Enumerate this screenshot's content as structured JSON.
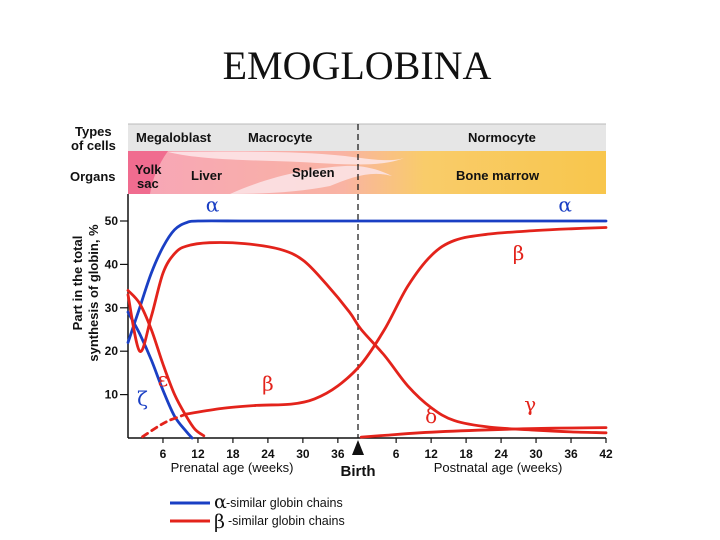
{
  "slide": {
    "title": "EMOGLOBINA"
  },
  "header": {
    "cells_label_1": "Types",
    "cells_label_2": "of cells",
    "organs_label": "Organs",
    "cell_types": [
      "Megaloblast",
      "Macrocyte",
      "Normocyte"
    ],
    "organs": [
      "Yolk",
      "sac",
      "Liver",
      "Spleen",
      "Bone marrow"
    ]
  },
  "chart_data": {
    "type": "line",
    "title": "",
    "ylabel_1": "Part in the total",
    "ylabel_2": "synthesis of globin, %",
    "xlabel_prenatal": "Prenatal age (weeks)",
    "xlabel_postnatal": "Postnatal age (weeks)",
    "birth_label": "Birth",
    "y_ticks": [
      "10",
      "20",
      "30",
      "40",
      "50"
    ],
    "ylim": [
      0,
      50
    ],
    "x_ticks_prenatal": [
      "6",
      "12",
      "18",
      "24",
      "30",
      "36"
    ],
    "x_ticks_postnatal": [
      "6",
      "12",
      "18",
      "24",
      "30",
      "36",
      "42"
    ],
    "x_note": "time axis in weeks; prenatal 0–40 weeks, birth at 40, postnatal 0–42 weeks",
    "legend": [
      {
        "symbol": "α",
        "text": "-similar globin chains",
        "color": "#1a3fc4"
      },
      {
        "symbol": "β",
        "text": "-similar globin chains",
        "color": "#e3231b"
      }
    ],
    "series": [
      {
        "name": "α",
        "group": "alpha",
        "color": "#1a3fc4",
        "dashed": false,
        "points": [
          [
            0,
            22
          ],
          [
            2,
            30
          ],
          [
            4,
            38
          ],
          [
            6,
            44
          ],
          [
            8,
            48
          ],
          [
            10,
            49.6
          ],
          [
            12,
            50
          ],
          [
            20,
            50
          ],
          [
            30,
            50
          ],
          [
            38,
            50
          ],
          [
            40,
            50
          ],
          [
            52,
            50
          ],
          [
            64,
            50
          ],
          [
            76,
            50
          ],
          [
            82,
            50
          ]
        ],
        "label": "α",
        "label_at": [
          [
            14.5,
            52.2
          ],
          [
            75,
            52.2
          ]
        ]
      },
      {
        "name": "ζ",
        "group": "alpha",
        "color": "#1a3fc4",
        "dashed": false,
        "points": [
          [
            0,
            29
          ],
          [
            2,
            24
          ],
          [
            4,
            18
          ],
          [
            6,
            11
          ],
          [
            8,
            5
          ],
          [
            10,
            1.5
          ],
          [
            11,
            0
          ]
        ],
        "label": "ζ",
        "label_at": [
          [
            2.5,
            7.5
          ]
        ]
      },
      {
        "name": "ε",
        "group": "beta",
        "color": "#e3231b",
        "dashed": false,
        "points": [
          [
            0,
            34
          ],
          [
            2,
            31
          ],
          [
            4,
            25
          ],
          [
            6,
            17
          ],
          [
            8,
            10
          ],
          [
            10,
            5
          ],
          [
            11.5,
            2
          ],
          [
            13,
            0.5
          ]
        ],
        "label": "ε",
        "label_at": [
          [
            6,
            12
          ]
        ]
      },
      {
        "name": "γ",
        "group": "beta",
        "color": "#e3231b",
        "dashed": false,
        "points": [
          [
            0,
            33
          ],
          [
            2,
            20
          ],
          [
            4,
            28
          ],
          [
            6,
            38
          ],
          [
            8,
            42.5
          ],
          [
            10,
            44.2
          ],
          [
            14,
            45
          ],
          [
            20,
            44.8
          ],
          [
            26,
            43.5
          ],
          [
            30,
            41
          ],
          [
            34,
            35.5
          ],
          [
            38,
            29
          ],
          [
            40,
            25
          ],
          [
            44,
            19
          ],
          [
            48,
            12
          ],
          [
            52,
            7
          ],
          [
            56,
            4
          ],
          [
            62,
            2.5
          ],
          [
            70,
            1.8
          ],
          [
            76,
            1.4
          ],
          [
            82,
            1.2
          ]
        ],
        "label": "γ",
        "label_at": [
          [
            69,
            6.2
          ]
        ]
      },
      {
        "name": "β",
        "group": "beta",
        "color": "#e3231b",
        "dashed": false,
        "points": [
          [
            10,
            5.5
          ],
          [
            16,
            6.8
          ],
          [
            22,
            7.5
          ],
          [
            28,
            7.8
          ],
          [
            32,
            9
          ],
          [
            36,
            12
          ],
          [
            40,
            17
          ],
          [
            44,
            25
          ],
          [
            48,
            35
          ],
          [
            52,
            42
          ],
          [
            56,
            45.5
          ],
          [
            62,
            47
          ],
          [
            70,
            47.8
          ],
          [
            76,
            48.2
          ],
          [
            82,
            48.5
          ]
        ],
        "label": "β",
        "label_at": [
          [
            24,
            11
          ],
          [
            67,
            41
          ]
        ]
      },
      {
        "name": "ε/γ (early, dashed)",
        "group": "beta",
        "color": "#e3231b",
        "dashed": true,
        "points": [
          [
            2.5,
            0.3
          ],
          [
            5,
            2.5
          ],
          [
            7,
            4
          ],
          [
            10,
            5.5
          ]
        ],
        "label": "",
        "label_at": []
      },
      {
        "name": "δ",
        "group": "beta",
        "color": "#e3231b",
        "dashed": false,
        "points": [
          [
            40,
            0.2
          ],
          [
            44,
            0.6
          ],
          [
            50,
            1.2
          ],
          [
            60,
            1.8
          ],
          [
            70,
            2.2
          ],
          [
            82,
            2.4
          ]
        ],
        "label": "δ",
        "label_at": [
          [
            52,
            3.5
          ]
        ]
      }
    ]
  }
}
